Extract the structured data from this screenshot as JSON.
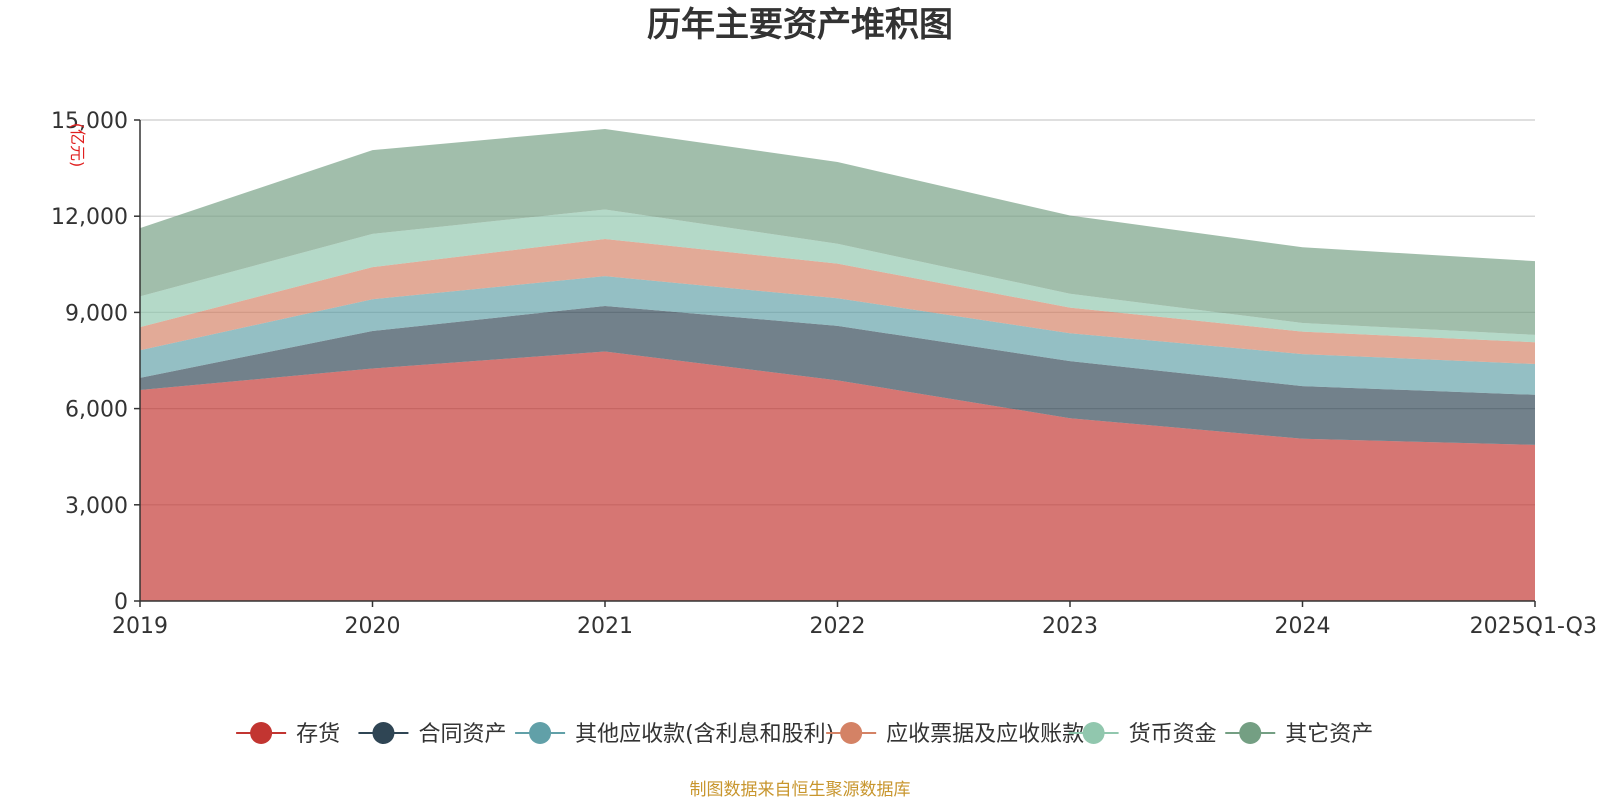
{
  "chart_data": {
    "type": "area",
    "stacked": true,
    "title": "历年主要资产堆积图",
    "unit": "(亿元)",
    "categories": [
      "2019",
      "2020",
      "2021",
      "2022",
      "2023",
      "2024",
      "2025Q1-Q3"
    ],
    "ylim": [
      0,
      15000
    ],
    "yticks": [
      0,
      3000,
      6000,
      9000,
      12000,
      15000
    ],
    "ytick_labels": [
      "0",
      "3,000",
      "6,000",
      "9,000",
      "12,000",
      "15,000"
    ],
    "grid": true,
    "legend_position": "bottom",
    "series": [
      {
        "name": "存货",
        "color": "#c23531",
        "values": [
          6580,
          7250,
          7780,
          6880,
          5700,
          5060,
          4870
        ]
      },
      {
        "name": "合同资产",
        "color": "#2f4554",
        "values": [
          380,
          1170,
          1420,
          1700,
          1780,
          1640,
          1560
        ]
      },
      {
        "name": "其他应收款(含利息和股利)",
        "color": "#61a0a8",
        "values": [
          860,
          990,
          930,
          860,
          870,
          1000,
          960
        ]
      },
      {
        "name": "应收票据及应收账款",
        "color": "#d48265",
        "values": [
          720,
          1000,
          1160,
          1080,
          800,
          700,
          680
        ]
      },
      {
        "name": "货币资金",
        "color": "#91c7ae",
        "values": [
          960,
          1040,
          920,
          620,
          430,
          270,
          230
        ]
      },
      {
        "name": "其它资产",
        "color": "#749f83",
        "values": [
          2130,
          2610,
          2510,
          2550,
          2440,
          2360,
          2300
        ]
      }
    ],
    "source": "制图数据来自恒生聚源数据库"
  }
}
